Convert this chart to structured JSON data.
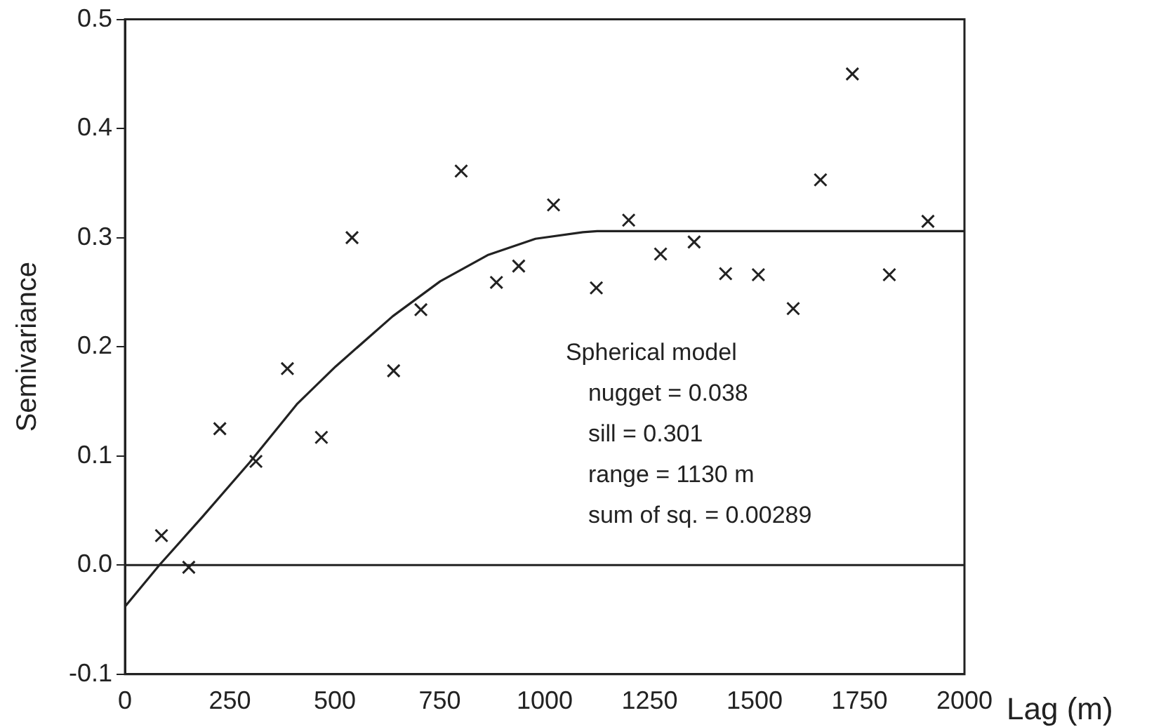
{
  "chart_data": {
    "type": "scatter",
    "xlabel": "Lag (m)",
    "ylabel": "Semivariance",
    "series": [
      {
        "type": "scatter",
        "color": "#222222",
        "marker": "cross",
        "x": [
          87,
          152,
          226,
          312,
          387,
          468,
          541,
          640,
          705,
          801,
          885,
          938,
          1021,
          1123,
          1200,
          1276,
          1356,
          1431,
          1509,
          1592,
          1657,
          1733,
          1821,
          1913
        ],
        "values": [
          0.027,
          -0.002,
          0.125,
          0.095,
          0.18,
          0.117,
          0.3,
          0.178,
          0.234,
          0.361,
          0.259,
          0.274,
          0.33,
          0.254,
          0.316,
          0.285,
          0.296,
          0.267,
          0.266,
          0.235,
          0.353,
          0.45,
          0.266,
          0.315
        ]
      },
      {
        "type": "line",
        "color": "#222222",
        "marker": "none",
        "x": [
          0,
          82,
          184,
          297,
          411,
          502,
          638,
          751,
          864,
          978,
          1091,
          1125,
          2000
        ],
        "values": [
          -0.038,
          0,
          0.044,
          0.094,
          0.148,
          0.182,
          0.228,
          0.26,
          0.284,
          0.299,
          0.305,
          0.306,
          0.306
        ]
      }
    ],
    "xlim": [
      0,
      2000
    ],
    "xticks": [
      0,
      250,
      500,
      750,
      1000,
      1250,
      1500,
      1750,
      2000
    ],
    "ylim": [
      -0.1,
      0.5
    ],
    "yticks": [
      {
        "value": -0.1,
        "label": "-0.1"
      },
      {
        "value": 0,
        "label": "0.0"
      },
      {
        "value": 0.1,
        "label": "0.1"
      },
      {
        "value": 0.2,
        "label": "0.2"
      },
      {
        "value": 0.3,
        "label": "0.3"
      },
      {
        "value": 0.4,
        "label": "0.4"
      },
      {
        "value": 0.5,
        "label": "0.5"
      }
    ],
    "ref_lines": [
      {
        "axis": "y",
        "value": 0
      }
    ],
    "annotations": [
      "Spherical model",
      "nugget = 0.038",
      "sill = 0.301",
      "range = 1130 m",
      "sum of sq. = 0.00289"
    ],
    "grid": false,
    "legend": false
  }
}
